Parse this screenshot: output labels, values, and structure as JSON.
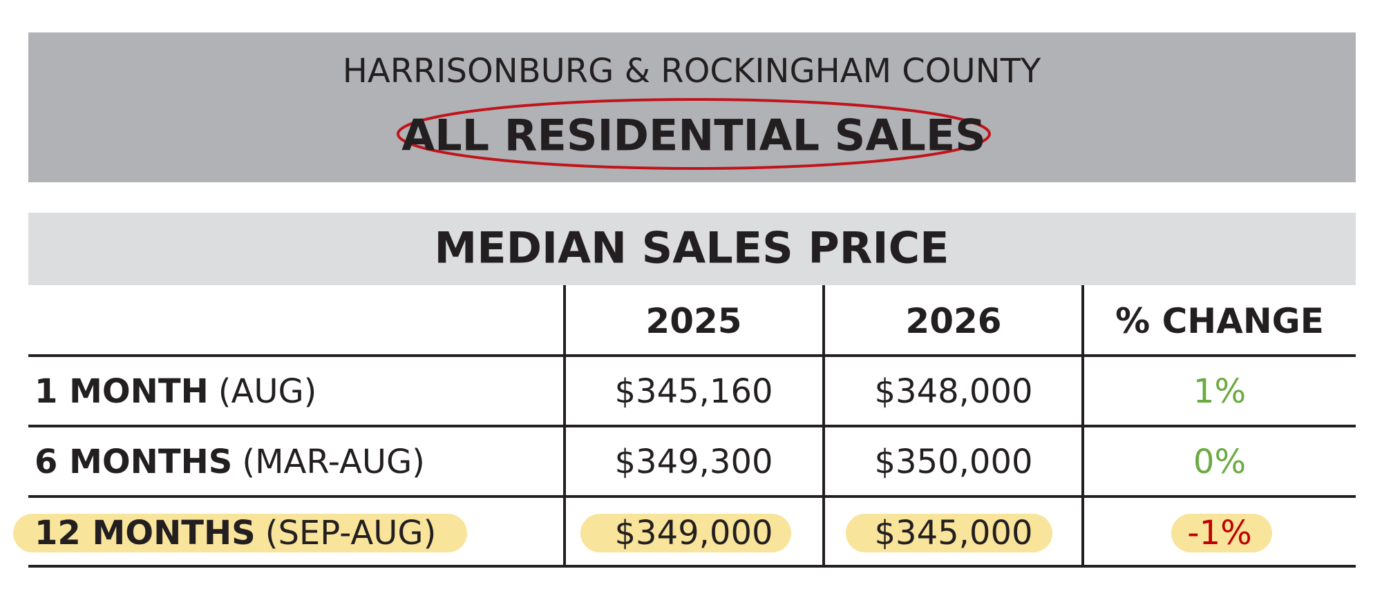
{
  "header": {
    "subtitle": "HARRISONBURG & ROCKINGHAM COUNTY",
    "title": "ALL RESIDENTIAL SALES"
  },
  "table": {
    "title": "MEDIAN SALES PRICE",
    "columns": [
      "2025",
      "2026",
      "% CHANGE"
    ],
    "rows": [
      {
        "period": "1 MONTH",
        "months": "(AUG)",
        "values": [
          "$345,160",
          "$348,000"
        ],
        "change": "1%"
      },
      {
        "period": "6 MONTHS",
        "months": "(MAR-AUG)",
        "values": [
          "$349,300",
          "$350,000"
        ],
        "change": "0%"
      },
      {
        "period": "12 MONTHS",
        "months": "(SEP-AUG)",
        "values": [
          "$349,000",
          "$345,000"
        ],
        "change": "-1%"
      }
    ]
  }
}
